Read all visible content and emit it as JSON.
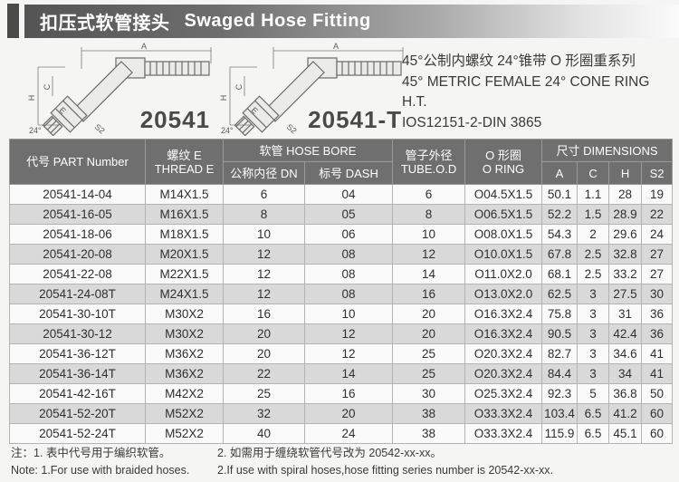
{
  "header": {
    "title_cn": "扣压式软管接头",
    "title_en": "Swaged Hose Fitting"
  },
  "figures": {
    "items": [
      {
        "label": "20541"
      },
      {
        "label": "20541-T"
      }
    ],
    "dims": {
      "a": "A",
      "c": "C",
      "h": "H",
      "e": "E",
      "s2": "S2",
      "angle": "24°"
    }
  },
  "description": {
    "line1": "45°公制内螺纹 24°锥带 O 形圈重系列",
    "line2": "45° METRIC FEMALE 24° CONE RING H.T.",
    "line3": "IOS12151-2-DIN 3865"
  },
  "table": {
    "headers": {
      "part": "代号 PART Number",
      "thread_cn": "螺纹 E",
      "thread_en": "THREAD E",
      "hose_bore": "软管 HOSE BORE",
      "dn": "公称内径 DN",
      "dash": "标号 DASH",
      "tube_cn": "管子外径",
      "tube_en": "TUBE.O.D",
      "oring_cn": "O 形圈",
      "oring_en": "O RING",
      "dimensions": "尺寸 DIMENSIONS",
      "dim_a": "A",
      "dim_c": "C",
      "dim_h": "H",
      "dim_s2": "S2"
    },
    "rows": [
      [
        "20541-14-04",
        "M14X1.5",
        "6",
        "04",
        "6",
        "O04.5X1.5",
        "50.1",
        "1.1",
        "28",
        "19"
      ],
      [
        "20541-16-05",
        "M16X1.5",
        "8",
        "05",
        "8",
        "O06.5X1.5",
        "52.2",
        "1.5",
        "28.9",
        "22"
      ],
      [
        "20541-18-06",
        "M18X1.5",
        "10",
        "06",
        "10",
        "O08.0X1.5",
        "54.3",
        "2",
        "29.6",
        "24"
      ],
      [
        "20541-20-08",
        "M20X1.5",
        "12",
        "08",
        "12",
        "O10.0X1.5",
        "67.8",
        "2.5",
        "32.8",
        "27"
      ],
      [
        "20541-22-08",
        "M22X1.5",
        "12",
        "08",
        "14",
        "O11.0X2.0",
        "68.1",
        "2.5",
        "33.2",
        "27"
      ],
      [
        "20541-24-08T",
        "M24X1.5",
        "12",
        "08",
        "16",
        "O13.0X2.0",
        "62.5",
        "3",
        "27.5",
        "30"
      ],
      [
        "20541-30-10T",
        "M30X2",
        "16",
        "10",
        "20",
        "O16.3X2.4",
        "75.8",
        "3",
        "31",
        "36"
      ],
      [
        "20541-30-12",
        "M30X2",
        "20",
        "12",
        "20",
        "O16.3X2.4",
        "90.5",
        "3",
        "42.4",
        "36"
      ],
      [
        "20541-36-12T",
        "M36X2",
        "20",
        "12",
        "25",
        "O20.3X2.4",
        "82.7",
        "3",
        "34.6",
        "41"
      ],
      [
        "20541-36-14T",
        "M36X2",
        "22",
        "14",
        "25",
        "O20.3X2.4",
        "84.4",
        "3",
        "34",
        "41"
      ],
      [
        "20541-42-16T",
        "M42X2",
        "25",
        "16",
        "30",
        "O25.3X2.4",
        "92.3",
        "5",
        "36.8",
        "50"
      ],
      [
        "20541-52-20T",
        "M52X2",
        "32",
        "20",
        "38",
        "O33.3X2.4",
        "103.4",
        "6.5",
        "41.2",
        "60"
      ],
      [
        "20541-52-24T",
        "M52X2",
        "40",
        "24",
        "38",
        "O33.3X2.4",
        "115.9",
        "6.5",
        "45.1",
        "60"
      ]
    ]
  },
  "notes": {
    "cn1": "注：1. 表中代号用于编织软管。",
    "cn2": "2. 如需用于缠绕软管代号改为 20542-xx-xx。",
    "en1": "Note: 1.For use with braided hoses.",
    "en2": "2.If use with spiral hoses,hose fitting series number is 20542-xx-xx."
  },
  "colors": {
    "header_bar_dark": "#545454",
    "table_header_bg": "#6f6f6f",
    "stripe_row": "#d9d9d9",
    "page_bg": "#f5f5f3"
  }
}
